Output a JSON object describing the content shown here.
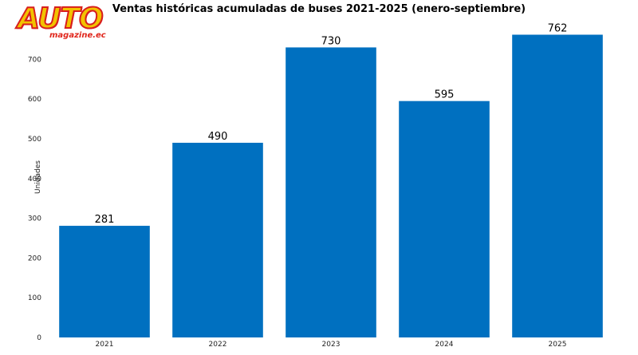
{
  "logo": {
    "word": "AUTO",
    "sub": "magazine.ec",
    "primary": "#f2c200",
    "accent": "#d81e1e"
  },
  "chart_data": {
    "type": "bar",
    "title": "Ventas históricas acumuladas de buses 2021-2025 (enero-septiembre)",
    "xlabel": "",
    "ylabel": "Unidades",
    "categories": [
      "2021",
      "2022",
      "2023",
      "2024",
      "2025"
    ],
    "values": [
      281,
      490,
      730,
      595,
      762
    ],
    "ylim": [
      0,
      765
    ],
    "yticks": [
      0,
      100,
      200,
      300,
      400,
      500,
      600,
      700
    ],
    "bar_color": "#0070c0",
    "data_labels": true,
    "grid": false,
    "legend": "none"
  }
}
